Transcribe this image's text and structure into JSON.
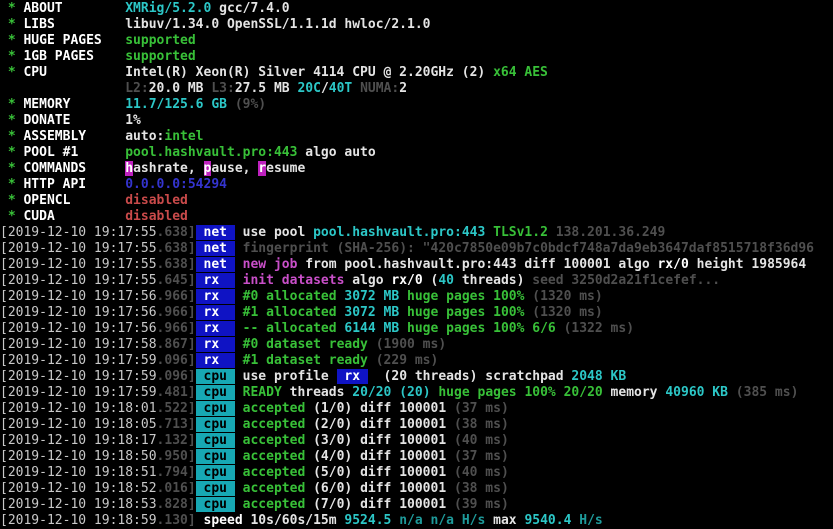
{
  "app": {
    "name": "xmrig-miner-terminal",
    "version_line": "XMRig/5.2.0 gcc/7.4.0"
  },
  "colors": {
    "bg": "#000000",
    "ts": "#c9c9c9",
    "white": "#e4e4e4",
    "bright-white": "#ffffff",
    "green": "#38c038",
    "cyan": "#2cc7c7",
    "dim-cyan": "#1e9a9a",
    "magenta": "#c94fc9",
    "red": "#c94a4a",
    "gray": "#4f4f4f",
    "navy": "#3434cf",
    "hotkey-bg": "#bf21bf",
    "badge-blue": "#0f13c4",
    "badge-cpu": "#17a8b4"
  },
  "terminal": {
    "info_rows": [
      {
        "id": "about",
        "star": "*",
        "label": "ABOUT",
        "segs": [
          [
            "c",
            "XMRig/5.2.0"
          ],
          [
            "w",
            " gcc/7.4.0"
          ]
        ]
      },
      {
        "id": "libs",
        "star": "*",
        "label": "LIBS",
        "segs": [
          [
            "w",
            "libuv/1.34.0 OpenSSL/1.1.1d hwloc/2.1.0"
          ]
        ]
      },
      {
        "id": "huge-pages",
        "star": "*",
        "label": "HUGE PAGES",
        "segs": [
          [
            "g",
            "supported"
          ]
        ]
      },
      {
        "id": "1gb-pages",
        "star": "*",
        "label": "1GB PAGES",
        "segs": [
          [
            "g",
            "supported"
          ]
        ]
      },
      {
        "id": "cpu",
        "star": "*",
        "label": "CPU",
        "segs": [
          [
            "w",
            "Intel(R) Xeon(R) Silver 4114 CPU @ 2.20GHz (2) "
          ],
          [
            "g",
            "x64 AES"
          ]
        ]
      },
      {
        "id": "cpu-cache",
        "star": "",
        "label": "",
        "segs": [
          [
            "d",
            "L2:"
          ],
          [
            "w",
            "20.0 MB "
          ],
          [
            "d",
            "L3:"
          ],
          [
            "w",
            "27.5 MB "
          ],
          [
            "c",
            "20C"
          ],
          [
            "w",
            "/"
          ],
          [
            "c",
            "40T "
          ],
          [
            "d",
            "NUMA:"
          ],
          [
            "w",
            "2"
          ]
        ]
      },
      {
        "id": "memory",
        "star": "*",
        "label": "MEMORY",
        "segs": [
          [
            "c",
            "11.7/125.6 GB "
          ],
          [
            "d",
            "(9%)"
          ]
        ]
      },
      {
        "id": "donate",
        "star": "*",
        "label": "DONATE",
        "segs": [
          [
            "w",
            "1%"
          ]
        ]
      },
      {
        "id": "assembly",
        "star": "*",
        "label": "ASSEMBLY",
        "segs": [
          [
            "w",
            "auto:"
          ],
          [
            "g",
            "intel"
          ]
        ]
      },
      {
        "id": "pool-1",
        "star": "*",
        "label": "POOL #1",
        "segs": [
          [
            "g",
            "pool.hashvault.pro:443"
          ],
          [
            "w",
            " algo auto"
          ]
        ]
      },
      {
        "id": "commands",
        "star": "*",
        "label": "COMMANDS",
        "segs": [
          [
            "hk",
            "h"
          ],
          [
            "w",
            "ashrate, "
          ],
          [
            "hk",
            "p"
          ],
          [
            "w",
            "ause, "
          ],
          [
            "hk",
            "r"
          ],
          [
            "w",
            "esume"
          ]
        ]
      },
      {
        "id": "http-api",
        "star": "*",
        "label": "HTTP API",
        "segs": [
          [
            "b",
            "0.0.0.0:54294"
          ]
        ]
      },
      {
        "id": "opencl",
        "star": "*",
        "label": "OPENCL",
        "segs": [
          [
            "r",
            "disabled"
          ]
        ]
      },
      {
        "id": "cuda",
        "star": "*",
        "label": "CUDA",
        "segs": [
          [
            "r",
            "disabled"
          ]
        ]
      }
    ],
    "log_rows": [
      {
        "ts": "[2019-12-10 19:17:55",
        "ms": ".638]",
        "badge": "net",
        "segs": [
          [
            "w",
            "use pool "
          ],
          [
            "c",
            "pool.hashvault.pro:443 "
          ],
          [
            "g",
            "TLSv1.2 "
          ],
          [
            "d",
            "138.201.36.249"
          ]
        ]
      },
      {
        "ts": "[2019-12-10 19:17:55",
        "ms": ".638]",
        "badge": "net",
        "segs": [
          [
            "d",
            "fingerprint (SHA-256): \"420c7850e09b7c0bdcf748a7da9eb3647daf8515718f36d96"
          ]
        ]
      },
      {
        "ts": "[2019-12-10 19:17:55",
        "ms": ".638]",
        "badge": "net",
        "segs": [
          [
            "m",
            "new job "
          ],
          [
            "w",
            "from pool.hashvault.pro:443 diff 100001 algo "
          ],
          [
            "wb",
            "rx/0 "
          ],
          [
            "w",
            "height 1985964"
          ]
        ]
      },
      {
        "ts": "[2019-12-10 19:17:55",
        "ms": ".645]",
        "badge": "rx",
        "segs": [
          [
            "m",
            "init datasets"
          ],
          [
            "w",
            " algo "
          ],
          [
            "wb",
            "rx/0 "
          ],
          [
            "w",
            "("
          ],
          [
            "c",
            "40"
          ],
          [
            "w",
            " threads) "
          ],
          [
            "d",
            "seed 3250d2a21f1cefef..."
          ]
        ]
      },
      {
        "ts": "[2019-12-10 19:17:56",
        "ms": ".966]",
        "badge": "rx",
        "segs": [
          [
            "g",
            "#0 allocated "
          ],
          [
            "c",
            "3072 MB "
          ],
          [
            "g",
            "huge pages 100% "
          ],
          [
            "d",
            "(1320 ms)"
          ]
        ]
      },
      {
        "ts": "[2019-12-10 19:17:56",
        "ms": ".966]",
        "badge": "rx",
        "segs": [
          [
            "g",
            "#1 allocated "
          ],
          [
            "c",
            "3072 MB "
          ],
          [
            "g",
            "huge pages 100% "
          ],
          [
            "d",
            "(1320 ms)"
          ]
        ]
      },
      {
        "ts": "[2019-12-10 19:17:56",
        "ms": ".966]",
        "badge": "rx",
        "segs": [
          [
            "g",
            "-- allocated "
          ],
          [
            "c",
            "6144 MB "
          ],
          [
            "g",
            "huge pages 100% 6/6 "
          ],
          [
            "d",
            "(1322 ms)"
          ]
        ]
      },
      {
        "ts": "[2019-12-10 19:17:58",
        "ms": ".867]",
        "badge": "rx",
        "segs": [
          [
            "g",
            "#0 dataset ready "
          ],
          [
            "d",
            "(1900 ms)"
          ]
        ]
      },
      {
        "ts": "[2019-12-10 19:17:59",
        "ms": ".096]",
        "badge": "rx",
        "segs": [
          [
            "g",
            "#1 dataset ready "
          ],
          [
            "d",
            "(229 ms)"
          ]
        ]
      },
      {
        "ts": "[2019-12-10 19:17:59",
        "ms": ".096]",
        "badge": "cpu",
        "segs": [
          [
            "w",
            "use profile "
          ],
          [
            "badge-blue",
            " rx "
          ],
          [
            "w",
            "  (20 threads) scratchpad "
          ],
          [
            "c",
            "2048 KB"
          ]
        ]
      },
      {
        "ts": "[2019-12-10 19:17:59",
        "ms": ".481]",
        "badge": "cpu",
        "segs": [
          [
            "g",
            "READY"
          ],
          [
            "w",
            " threads "
          ],
          [
            "c",
            "20/20 (20)"
          ],
          [
            "g",
            " huge pages 100% 20/20"
          ],
          [
            "w",
            " memory "
          ],
          [
            "c",
            "40960 KB "
          ],
          [
            "d",
            "(385 ms)"
          ]
        ]
      },
      {
        "ts": "[2019-12-10 19:18:01",
        "ms": ".522]",
        "badge": "cpu",
        "segs": [
          [
            "g",
            "accepted"
          ],
          [
            "w",
            " (1/0) diff 100001 "
          ],
          [
            "d",
            "(37 ms)"
          ]
        ]
      },
      {
        "ts": "[2019-12-10 19:18:05",
        "ms": ".713]",
        "badge": "cpu",
        "segs": [
          [
            "g",
            "accepted"
          ],
          [
            "w",
            " (2/0) diff 100001 "
          ],
          [
            "d",
            "(38 ms)"
          ]
        ]
      },
      {
        "ts": "[2019-12-10 19:18:17",
        "ms": ".132]",
        "badge": "cpu",
        "segs": [
          [
            "g",
            "accepted"
          ],
          [
            "w",
            " (3/0) diff 100001 "
          ],
          [
            "d",
            "(40 ms)"
          ]
        ]
      },
      {
        "ts": "[2019-12-10 19:18:50",
        "ms": ".950]",
        "badge": "cpu",
        "segs": [
          [
            "g",
            "accepted"
          ],
          [
            "w",
            " (4/0) diff 100001 "
          ],
          [
            "d",
            "(37 ms)"
          ]
        ]
      },
      {
        "ts": "[2019-12-10 19:18:51",
        "ms": ".794]",
        "badge": "cpu",
        "segs": [
          [
            "g",
            "accepted"
          ],
          [
            "w",
            " (5/0) diff 100001 "
          ],
          [
            "d",
            "(40 ms)"
          ]
        ]
      },
      {
        "ts": "[2019-12-10 19:18:52",
        "ms": ".016]",
        "badge": "cpu",
        "segs": [
          [
            "g",
            "accepted"
          ],
          [
            "w",
            " (6/0) diff 100001 "
          ],
          [
            "d",
            "(38 ms)"
          ]
        ]
      },
      {
        "ts": "[2019-12-10 19:18:53",
        "ms": ".828]",
        "badge": "cpu",
        "segs": [
          [
            "g",
            "accepted"
          ],
          [
            "w",
            " (7/0) diff 100001 "
          ],
          [
            "d",
            "(39 ms)"
          ]
        ]
      },
      {
        "ts": "[2019-12-10 19:18:59",
        "ms": ".130]",
        "badge": null,
        "segs": [
          [
            "wb",
            "speed "
          ],
          [
            "w",
            "10s/60s/15m "
          ],
          [
            "c",
            "9524.5 "
          ],
          [
            "cd",
            "n/a n/a "
          ],
          [
            "cd",
            "H/s"
          ],
          [
            "w",
            " max "
          ],
          [
            "c",
            "9540.4 "
          ],
          [
            "cd",
            "H/s"
          ]
        ]
      }
    ]
  }
}
